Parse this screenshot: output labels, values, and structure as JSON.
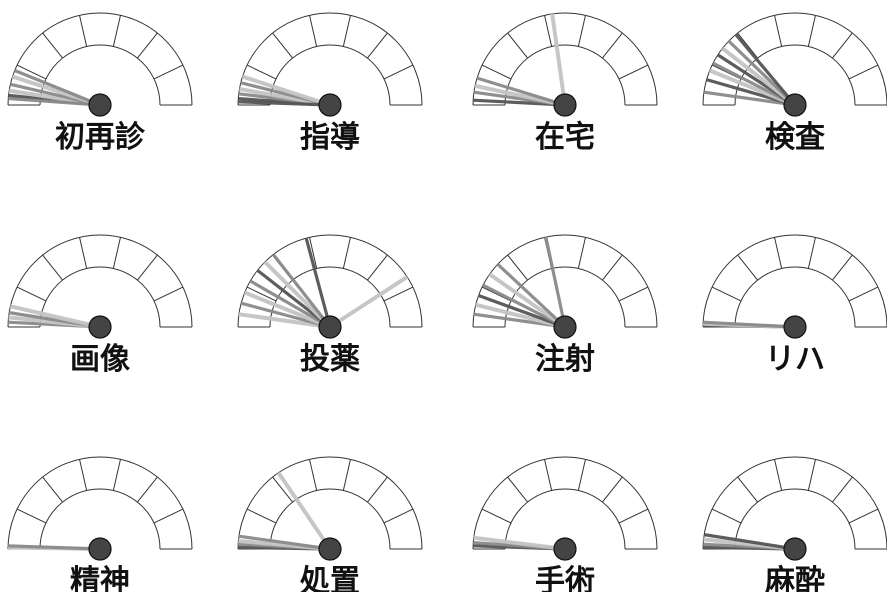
{
  "chart_data": {
    "type": "gauge",
    "scale": {
      "segments": 7,
      "angle_unit": "degrees from left baseline (0 = left, 90 = straight up, 180 = right)"
    },
    "needle_colors": {
      "dark": "#555555",
      "mid": "#8a8a8a",
      "light": "#c4c4c4"
    },
    "hub_color": "#444444",
    "gauges": [
      {
        "label": "初再診",
        "needles": [
          {
            "angle": 6,
            "shade": "dark"
          },
          {
            "angle": 9,
            "shade": "light"
          },
          {
            "angle": 13,
            "shade": "mid"
          },
          {
            "angle": 18,
            "shade": "light"
          },
          {
            "angle": 22,
            "shade": "mid"
          },
          {
            "angle": 4,
            "shade": "mid"
          }
        ]
      },
      {
        "label": "指導",
        "needles": [
          {
            "angle": 4,
            "shade": "dark"
          },
          {
            "angle": 7,
            "shade": "mid"
          },
          {
            "angle": 10,
            "shade": "light"
          },
          {
            "angle": 14,
            "shade": "mid"
          },
          {
            "angle": 18,
            "shade": "light"
          },
          {
            "angle": 2,
            "shade": "dark"
          }
        ]
      },
      {
        "label": "在宅",
        "needles": [
          {
            "angle": 3,
            "shade": "dark"
          },
          {
            "angle": 8,
            "shade": "mid"
          },
          {
            "angle": 12,
            "shade": "light"
          },
          {
            "angle": 17,
            "shade": "mid"
          },
          {
            "angle": 82,
            "shade": "light"
          }
        ]
      },
      {
        "label": "検査",
        "needles": [
          {
            "angle": 8,
            "shade": "mid"
          },
          {
            "angle": 16,
            "shade": "dark"
          },
          {
            "angle": 22,
            "shade": "light"
          },
          {
            "angle": 27,
            "shade": "mid"
          },
          {
            "angle": 33,
            "shade": "dark"
          },
          {
            "angle": 38,
            "shade": "light"
          },
          {
            "angle": 44,
            "shade": "mid"
          },
          {
            "angle": 50,
            "shade": "dark"
          }
        ]
      },
      {
        "label": "画像",
        "needles": [
          {
            "angle": 3,
            "shade": "mid"
          },
          {
            "angle": 6,
            "shade": "light"
          },
          {
            "angle": 9,
            "shade": "mid"
          },
          {
            "angle": 13,
            "shade": "light"
          }
        ]
      },
      {
        "label": "投薬",
        "needles": [
          {
            "angle": 8,
            "shade": "light"
          },
          {
            "angle": 15,
            "shade": "mid"
          },
          {
            "angle": 22,
            "shade": "light"
          },
          {
            "angle": 30,
            "shade": "mid"
          },
          {
            "angle": 38,
            "shade": "dark"
          },
          {
            "angle": 45,
            "shade": "light"
          },
          {
            "angle": 52,
            "shade": "mid"
          },
          {
            "angle": 75,
            "shade": "dark"
          },
          {
            "angle": 147,
            "shade": "light"
          }
        ]
      },
      {
        "label": "注射",
        "needles": [
          {
            "angle": 8,
            "shade": "mid"
          },
          {
            "angle": 14,
            "shade": "light"
          },
          {
            "angle": 20,
            "shade": "dark"
          },
          {
            "angle": 27,
            "shade": "mid"
          },
          {
            "angle": 35,
            "shade": "light"
          },
          {
            "angle": 43,
            "shade": "mid"
          },
          {
            "angle": 78,
            "shade": "mid"
          }
        ]
      },
      {
        "label": "リハ",
        "needles": [
          {
            "angle": 1,
            "shade": "dark"
          },
          {
            "angle": 2,
            "shade": "light"
          },
          {
            "angle": 3,
            "shade": "mid"
          }
        ]
      },
      {
        "label": "精神",
        "needles": [
          {
            "angle": 1,
            "shade": "light"
          },
          {
            "angle": 2,
            "shade": "mid"
          }
        ]
      },
      {
        "label": "処置",
        "needles": [
          {
            "angle": 1,
            "shade": "dark"
          },
          {
            "angle": 3,
            "shade": "mid"
          },
          {
            "angle": 5,
            "shade": "light"
          },
          {
            "angle": 8,
            "shade": "mid"
          },
          {
            "angle": 56,
            "shade": "light"
          }
        ]
      },
      {
        "label": "手術",
        "needles": [
          {
            "angle": 2,
            "shade": "dark"
          },
          {
            "angle": 4,
            "shade": "mid"
          },
          {
            "angle": 7,
            "shade": "light"
          }
        ]
      },
      {
        "label": "麻酔",
        "needles": [
          {
            "angle": 1,
            "shade": "dark"
          },
          {
            "angle": 3,
            "shade": "mid"
          },
          {
            "angle": 6,
            "shade": "light"
          },
          {
            "angle": 9,
            "shade": "dark"
          }
        ]
      }
    ]
  }
}
